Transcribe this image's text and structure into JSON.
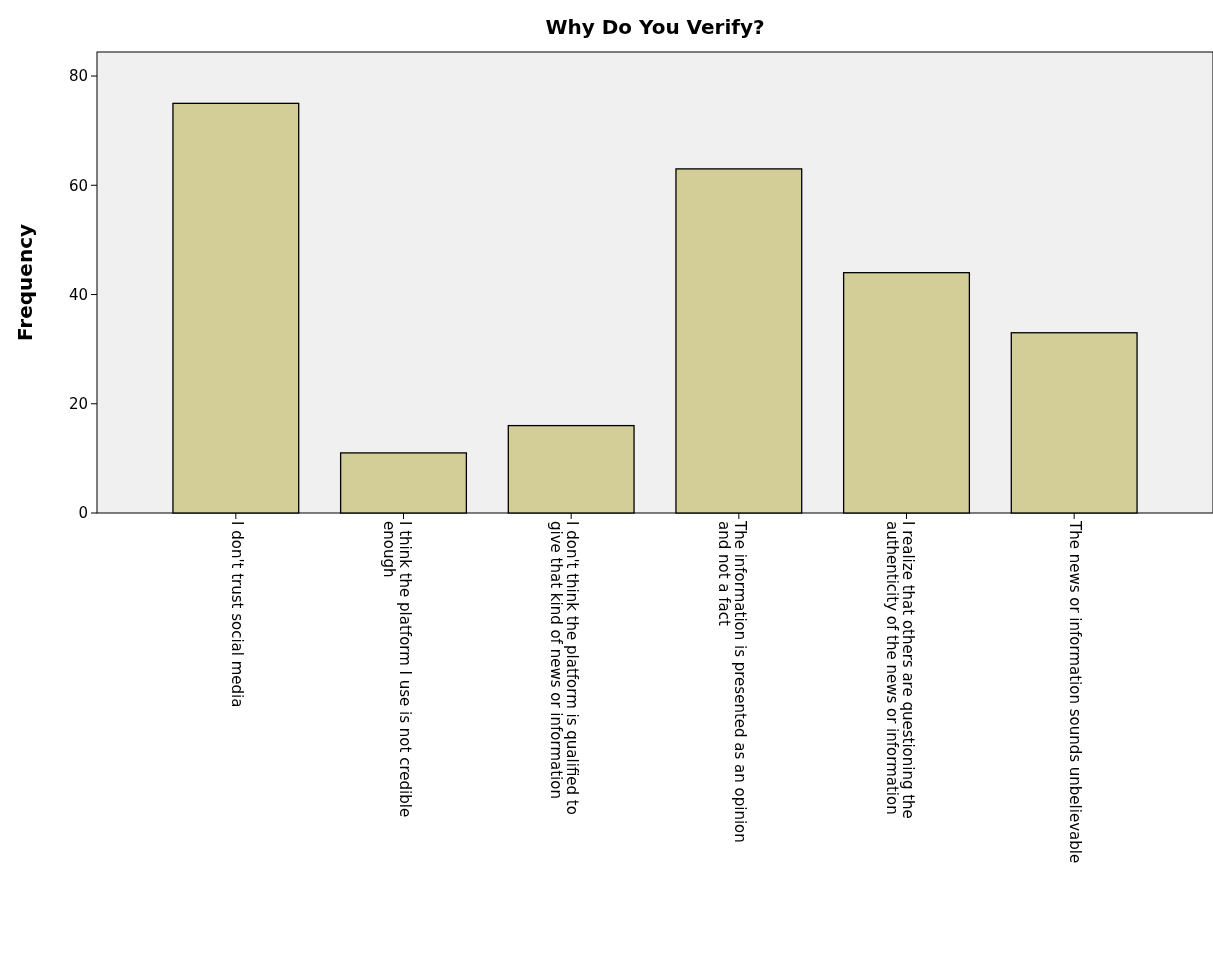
{
  "chart_data": {
    "type": "bar",
    "title": "Why Do You Verify?",
    "ylabel": "Frequency",
    "categories": [
      "I don't trust social media",
      "I think the platform I use is not credible enough",
      "I don't think the platform is qualified to give that kind of news or information",
      "The information is presented as an opinion and not a fact",
      "I realize that others are questioning the authenticity of the news or information",
      "The news or information sounds unbelievable"
    ],
    "values": [
      75,
      11,
      16,
      63,
      44,
      33
    ],
    "color": "#d3ce97",
    "ylim": [
      0,
      84.4
    ],
    "yticks": [
      0,
      20,
      40,
      60,
      80
    ],
    "grid": false
  }
}
